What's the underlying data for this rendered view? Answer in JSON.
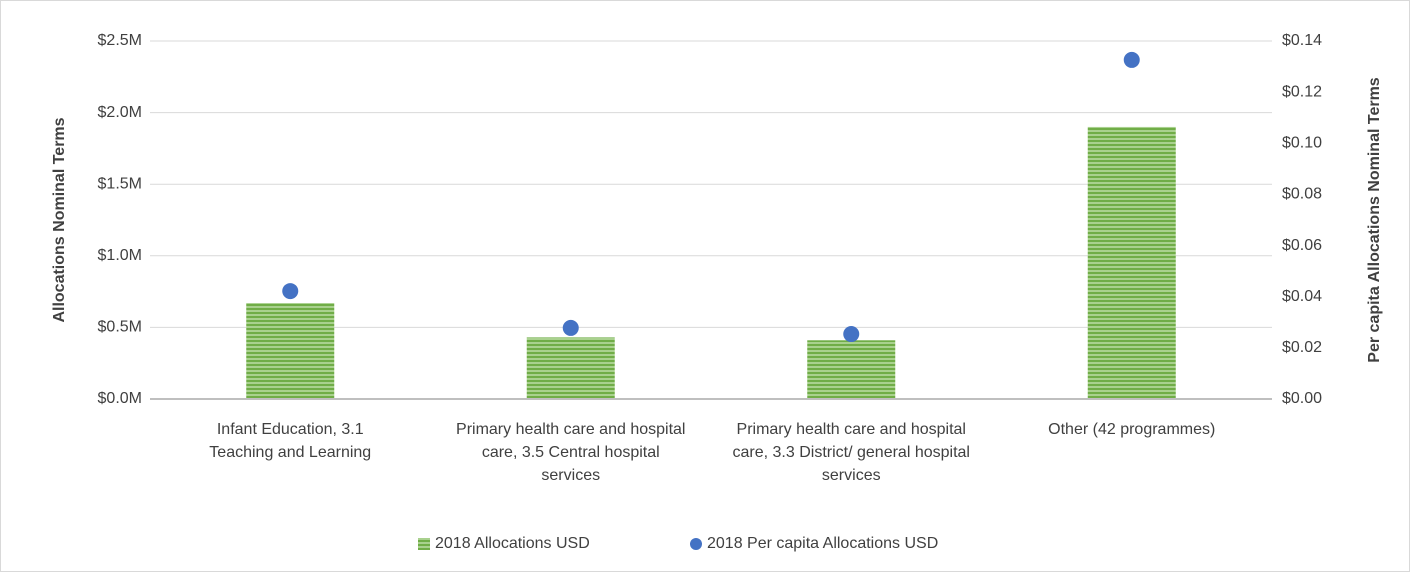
{
  "chart_data": {
    "type": "bar",
    "categories": [
      "Infant Education, 3.1 Teaching and Learning",
      "Primary health care and hospital care, 3.5 Central hospital services",
      "Primary health care and hospital care, 3.3 District/ general hospital services",
      "Other (42 programmes)"
    ],
    "series": [
      {
        "name": "2018 Allocations USD",
        "type": "bar",
        "color": "#70ad47",
        "values": [
          670000,
          430000,
          410000,
          1900000
        ]
      },
      {
        "name": "2018 Per capita Allocations USD",
        "type": "scatter",
        "axis": "y2",
        "color": "#4472c4",
        "values": [
          0.0422,
          0.0278,
          0.0254,
          0.1326
        ]
      }
    ],
    "ylabel": "Allocations Nominal Terms",
    "y2label": "Per capita Allocations Nominal Terms",
    "ylim": [
      0,
      2500000
    ],
    "yticks": [
      {
        "value": 0,
        "label": "$0.0M"
      },
      {
        "value": 500000,
        "label": "$0.5M"
      },
      {
        "value": 1000000,
        "label": "$1.0M"
      },
      {
        "value": 1500000,
        "label": "$1.5M"
      },
      {
        "value": 2000000,
        "label": "$2.0M"
      },
      {
        "value": 2500000,
        "label": "$2.5M"
      }
    ],
    "y2lim": [
      0,
      0.14
    ],
    "y2ticks": [
      {
        "value": 0,
        "label": "$0.00"
      },
      {
        "value": 0.02,
        "label": "$0.02"
      },
      {
        "value": 0.04,
        "label": "$0.04"
      },
      {
        "value": 0.06,
        "label": "$0.06"
      },
      {
        "value": 0.08,
        "label": "$0.08"
      },
      {
        "value": 0.1,
        "label": "$0.10"
      },
      {
        "value": 0.12,
        "label": "$0.12"
      },
      {
        "value": 0.14,
        "label": "$0.14"
      }
    ],
    "grid": true,
    "legend": "bottom"
  }
}
